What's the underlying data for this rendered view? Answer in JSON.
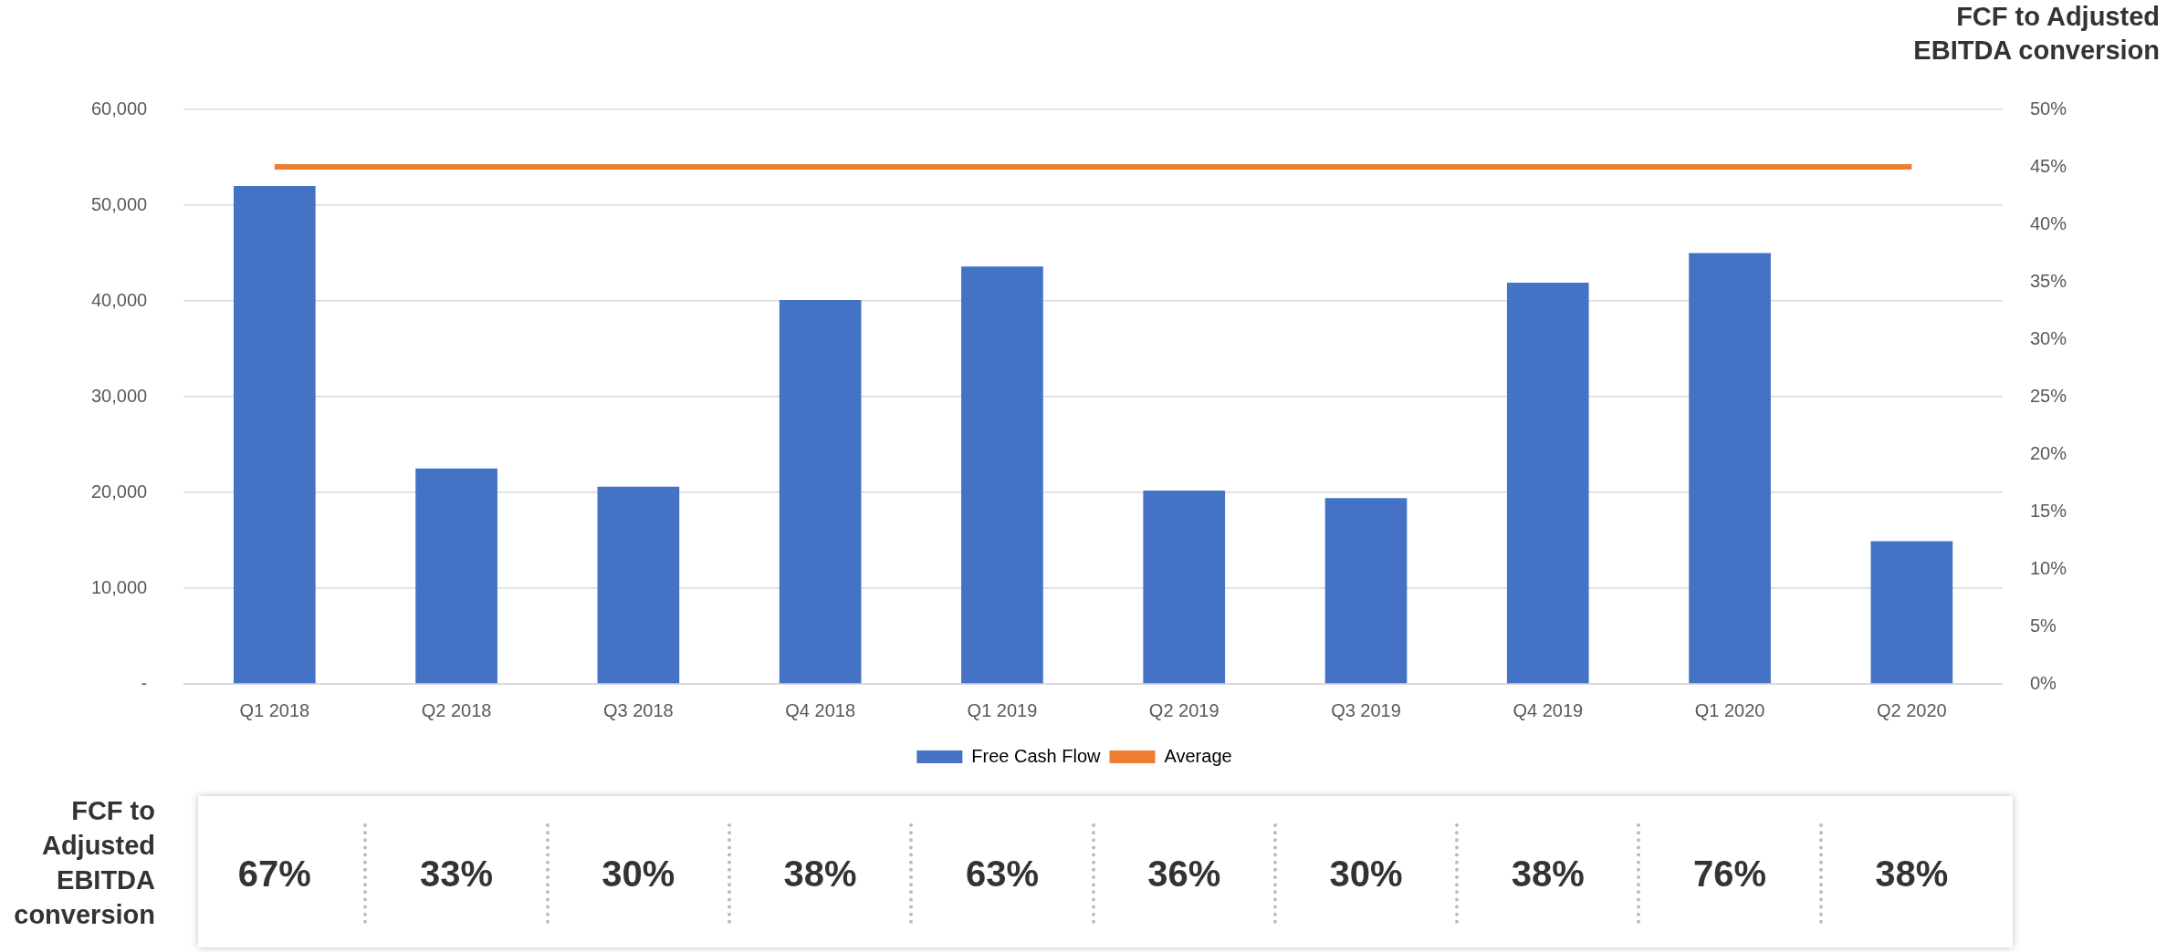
{
  "chart_data": {
    "type": "bar",
    "y2label": "FCF to Adjusted EBITDA conversion",
    "categories": [
      "Q1 2018",
      "Q2 2018",
      "Q3 2018",
      "Q4 2018",
      "Q1 2019",
      "Q2 2019",
      "Q3 2019",
      "Q4 2019",
      "Q1 2020",
      "Q2 2020"
    ],
    "series": [
      {
        "name": "Free Cash Flow",
        "color": "#4472c4",
        "values": [
          52000,
          22500,
          20600,
          40100,
          43600,
          20200,
          19400,
          41900,
          45000,
          14900
        ]
      },
      {
        "name": "Average",
        "type": "line",
        "axis": "y2",
        "color": "#ed7d31",
        "values": [
          45,
          45,
          45,
          45,
          45,
          45,
          45,
          45,
          45,
          45
        ]
      }
    ],
    "ylim": [
      0,
      60000
    ],
    "yticks": [
      {
        "value": 0,
        "label": "-"
      },
      {
        "value": 10000,
        "label": "10,000"
      },
      {
        "value": 20000,
        "label": "20,000"
      },
      {
        "value": 30000,
        "label": "30,000"
      },
      {
        "value": 40000,
        "label": "40,000"
      },
      {
        "value": 50000,
        "label": "50,000"
      },
      {
        "value": 60000,
        "label": "60,000"
      }
    ],
    "y2lim": [
      0,
      50
    ],
    "y2ticks": [
      {
        "value": 0,
        "label": "0%"
      },
      {
        "value": 5,
        "label": "5%"
      },
      {
        "value": 10,
        "label": "10%"
      },
      {
        "value": 15,
        "label": "15%"
      },
      {
        "value": 20,
        "label": "20%"
      },
      {
        "value": 25,
        "label": "25%"
      },
      {
        "value": 30,
        "label": "30%"
      },
      {
        "value": 35,
        "label": "35%"
      },
      {
        "value": 40,
        "label": "40%"
      },
      {
        "value": 45,
        "label": "45%"
      },
      {
        "value": 50,
        "label": "50%"
      }
    ],
    "grid": "y",
    "legend": "bottom",
    "marker": "none",
    "annotations": [
      "FCF to Adjusted EBITDA conversion",
      "67%",
      "33%",
      "30%",
      "38%",
      "63%",
      "36%",
      "30%",
      "38%",
      "76%",
      "38%"
    ]
  }
}
